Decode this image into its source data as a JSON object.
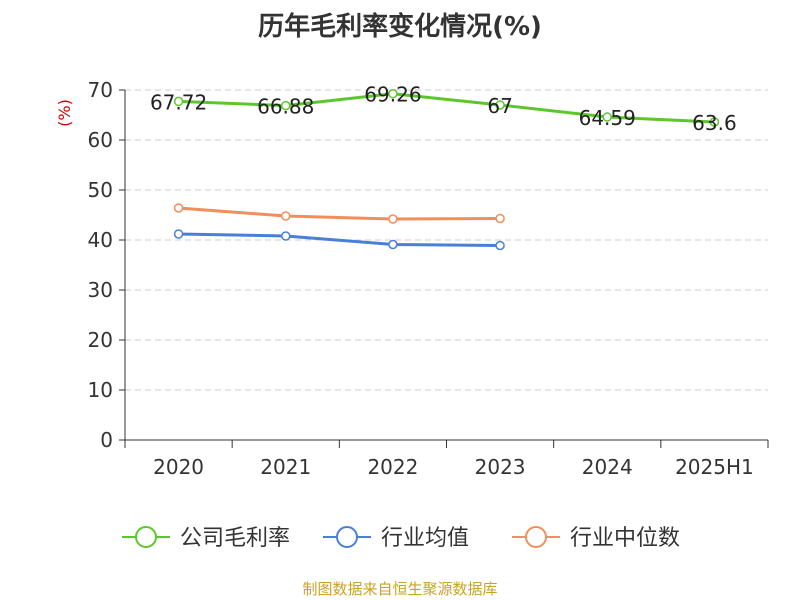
{
  "chart_data": {
    "type": "line",
    "title": "历年毛利率变化情况(%)",
    "ylabel": "(%)",
    "ylim": [
      0,
      70
    ],
    "yticks": [
      0,
      10,
      20,
      30,
      40,
      50,
      60,
      70
    ],
    "categories": [
      "2020",
      "2021",
      "2022",
      "2023",
      "2024",
      "2025H1"
    ],
    "grid": true,
    "legend_position": "bottom",
    "series": [
      {
        "name": "公司毛利率",
        "color": "#5cc72d",
        "values": [
          67.72,
          66.88,
          69.26,
          67,
          64.59,
          63.6
        ],
        "labels": [
          "67.72",
          "66.88",
          "69.26",
          "67",
          "64.59",
          "63.6"
        ]
      },
      {
        "name": "行业均值",
        "color": "#4a7fd9",
        "values": [
          41.2,
          40.8,
          39.1,
          38.9,
          null,
          null
        ]
      },
      {
        "name": "行业中位数",
        "color": "#f28e5c",
        "values": [
          46.4,
          44.8,
          44.2,
          44.3,
          null,
          null
        ]
      }
    ],
    "source": "制图数据来自恒生聚源数据库"
  }
}
